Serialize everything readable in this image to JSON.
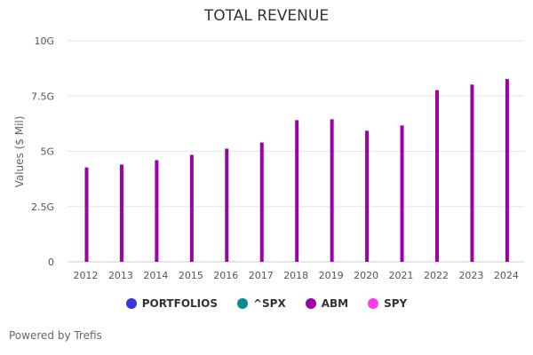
{
  "chart_data": {
    "type": "bar",
    "title": "TOTAL REVENUE",
    "xlabel": "",
    "ylabel": "Values ($ Mil)",
    "ylim": [
      0,
      10
    ],
    "yticks": [
      0,
      2.5,
      5,
      7.5,
      10
    ],
    "ytick_labels": [
      "0",
      "2.5G",
      "5G",
      "7.5G",
      "10G"
    ],
    "grid": true,
    "categories": [
      "2012",
      "2013",
      "2014",
      "2015",
      "2016",
      "2017",
      "2018",
      "2019",
      "2020",
      "2021",
      "2022",
      "2023",
      "2024"
    ],
    "series": [
      {
        "name": "ABM",
        "color": "#9c00a6",
        "values": [
          4.27,
          4.4,
          4.6,
          4.84,
          5.12,
          5.4,
          6.41,
          6.45,
          5.93,
          6.17,
          7.77,
          8.02,
          8.27
        ]
      }
    ],
    "legend": [
      {
        "name": "PORTFOLIOS",
        "color": "#3b35d6"
      },
      {
        "name": "^SPX",
        "color": "#0a8a8a"
      },
      {
        "name": "ABM",
        "color": "#9c00a6"
      },
      {
        "name": "SPY",
        "color": "#ff3cf0"
      }
    ],
    "legend_position": "bottom"
  },
  "footer": "Powered by Trefis"
}
